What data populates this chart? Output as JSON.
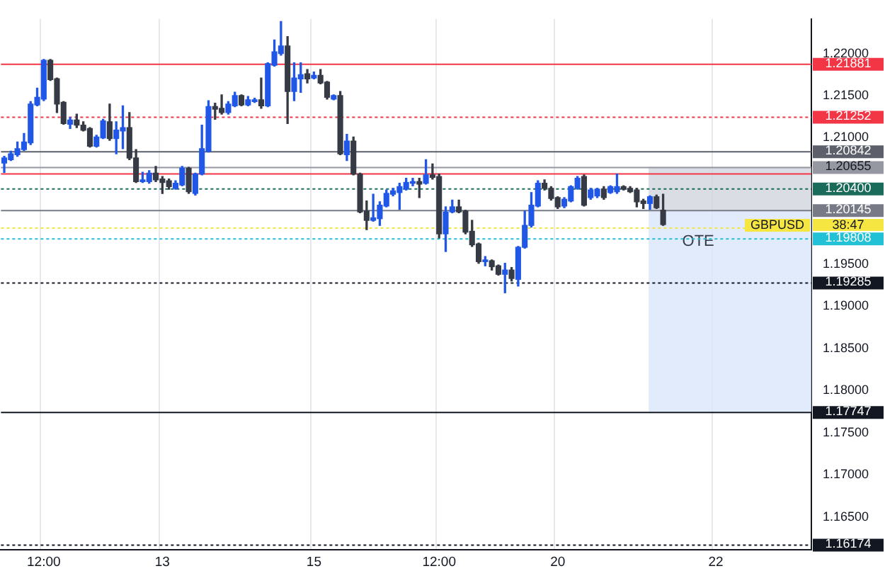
{
  "chart_data": {
    "type": "candlestick",
    "annotations": [
      {
        "text": "GBPUSD",
        "y": 1.19936
      },
      "38:47"
    ],
    "categories": [
      null,
      null,
      null,
      null,
      null,
      null,
      "12:00",
      null,
      null,
      null,
      null,
      null,
      null,
      null,
      null,
      null,
      null,
      null,
      null,
      null,
      null,
      null,
      null,
      null,
      "13",
      null,
      null,
      null,
      null,
      null,
      null,
      null,
      null,
      null,
      null,
      null,
      null,
      null,
      null,
      null,
      null,
      null,
      null,
      null,
      null,
      null,
      null,
      "15",
      null,
      null,
      null,
      null,
      null,
      null,
      null,
      null,
      null,
      null,
      null,
      null,
      null,
      null,
      null,
      null,
      null,
      null,
      "12:00",
      null,
      null,
      null,
      null,
      null,
      null,
      null,
      null,
      null,
      null,
      null,
      null,
      null,
      null,
      null,
      null,
      null,
      "20",
      null,
      null,
      null,
      null,
      null,
      null,
      null,
      null,
      null,
      null,
      null,
      null,
      null,
      null,
      null,
      null,
      null,
      null,
      null,
      null,
      null,
      null,
      null,
      "22",
      null,
      null,
      null,
      null,
      null,
      null,
      null,
      null,
      null,
      null,
      null,
      null,
      null,
      null
    ],
    "ohlc": [
      [
        1.207,
        1.2078,
        1.2059,
        1.2076
      ],
      [
        1.2074,
        1.2084,
        1.2073,
        1.2081
      ],
      [
        1.208,
        1.2095,
        1.2078,
        1.2087
      ],
      [
        1.2086,
        1.2105,
        1.2085,
        1.2095
      ],
      [
        1.2094,
        1.2143,
        1.2092,
        1.214
      ],
      [
        1.2139,
        1.2159,
        1.2138,
        1.2148
      ],
      [
        1.2146,
        1.2193,
        1.2144,
        1.2192
      ],
      [
        1.2192,
        1.2193,
        1.2168,
        1.2169
      ],
      [
        1.217,
        1.2171,
        1.213,
        1.214
      ],
      [
        1.2142,
        1.2143,
        1.2116,
        1.2117
      ],
      [
        1.2116,
        1.2124,
        1.2111,
        1.2121
      ],
      [
        1.2121,
        1.2128,
        1.2112,
        1.2115
      ],
      [
        1.2115,
        1.2119,
        1.2108,
        1.2109
      ],
      [
        1.2111,
        1.2112,
        1.2089,
        1.209
      ],
      [
        1.209,
        1.2103,
        1.2089,
        1.2101
      ],
      [
        1.21,
        1.2122,
        1.2099,
        1.212
      ],
      [
        1.2119,
        1.214,
        1.2097,
        1.2099
      ],
      [
        1.2099,
        1.2119,
        1.2081,
        1.2109
      ],
      [
        1.2108,
        1.2138,
        1.2087,
        1.2112
      ],
      [
        1.2112,
        1.213,
        1.2074,
        1.2076
      ],
      [
        1.2076,
        1.2086,
        1.2047,
        1.2048
      ],
      [
        1.2048,
        1.2059,
        1.2047,
        1.205
      ],
      [
        1.2048,
        1.2061,
        1.2046,
        1.2058
      ],
      [
        1.2058,
        1.2066,
        1.2048,
        1.205
      ],
      [
        1.2051,
        1.2054,
        1.2034,
        1.2047
      ],
      [
        1.2049,
        1.2051,
        1.2039,
        1.2042
      ],
      [
        1.204,
        1.2049,
        1.2039,
        1.2046
      ],
      [
        1.2044,
        1.2066,
        1.2043,
        1.2064
      ],
      [
        1.2064,
        1.2065,
        1.2034,
        1.2036
      ],
      [
        1.2034,
        1.2058,
        1.2032,
        1.2057
      ],
      [
        1.2057,
        1.2115,
        1.2056,
        1.2087
      ],
      [
        1.2084,
        1.2144,
        1.2083,
        1.2137
      ],
      [
        1.2137,
        1.2141,
        1.2122,
        1.2134
      ],
      [
        1.2135,
        1.2151,
        1.2128,
        1.213
      ],
      [
        1.213,
        1.2143,
        1.2128,
        1.214
      ],
      [
        1.2138,
        1.2154,
        1.2137,
        1.215
      ],
      [
        1.215,
        1.2151,
        1.2138,
        1.2139
      ],
      [
        1.2139,
        1.2149,
        1.2138,
        1.2145
      ],
      [
        1.2143,
        1.2147,
        1.2142,
        1.2145
      ],
      [
        1.2145,
        1.2171,
        1.2135,
        1.2138
      ],
      [
        1.2138,
        1.2189,
        1.2137,
        1.2188
      ],
      [
        1.2186,
        1.2216,
        1.2185,
        1.2202
      ],
      [
        1.22,
        1.2238,
        1.2198,
        1.2209
      ],
      [
        1.2209,
        1.222,
        1.2117,
        1.2155
      ],
      [
        1.2155,
        1.2189,
        1.2144,
        1.2171
      ],
      [
        1.217,
        1.2189,
        1.2154,
        1.2175
      ],
      [
        1.2176,
        1.2181,
        1.2165,
        1.217
      ],
      [
        1.2171,
        1.2178,
        1.217,
        1.2174
      ],
      [
        1.2174,
        1.2181,
        1.2164,
        1.2165
      ],
      [
        1.2166,
        1.2167,
        1.2146,
        1.2148
      ],
      [
        1.2146,
        1.2151,
        1.2145,
        1.215
      ],
      [
        1.215,
        1.2155,
        1.208,
        1.2081
      ],
      [
        1.208,
        1.2104,
        1.2073,
        1.2096
      ],
      [
        1.2096,
        1.2101,
        1.2056,
        1.2057
      ],
      [
        1.2057,
        1.2058,
        1.2011,
        1.2012
      ],
      [
        1.2013,
        1.2025,
        1.1991,
        1.2002
      ],
      [
        1.2002,
        1.2033,
        1.2001,
        1.2005
      ],
      [
        1.2004,
        1.2024,
        1.1996,
        1.202
      ],
      [
        1.2019,
        1.2038,
        1.2018,
        1.2034
      ],
      [
        1.2033,
        1.204,
        1.2031,
        1.2037
      ],
      [
        1.2035,
        1.2046,
        1.2015,
        1.2042
      ],
      [
        1.2039,
        1.2052,
        1.2038,
        1.2047
      ],
      [
        1.2046,
        1.2052,
        1.2043,
        1.2048
      ],
      [
        1.2048,
        1.2052,
        1.2029,
        1.2045
      ],
      [
        1.2046,
        1.2074,
        1.2045,
        1.2056
      ],
      [
        1.2056,
        1.2069,
        1.2051,
        1.2053
      ],
      [
        1.2054,
        1.2057,
        1.1981,
        1.1986
      ],
      [
        1.1986,
        1.2018,
        1.1965,
        1.2012
      ],
      [
        1.2012,
        1.2026,
        1.2011,
        1.2018
      ],
      [
        1.2018,
        1.2026,
        1.2011,
        1.2012
      ],
      [
        1.2013,
        1.2014,
        1.1986,
        1.1988
      ],
      [
        1.1989,
        1.2002,
        1.1971,
        1.1973
      ],
      [
        1.1974,
        1.1975,
        1.1951,
        1.1953
      ],
      [
        1.1953,
        1.1959,
        1.1948,
        1.1955
      ],
      [
        1.1954,
        1.1955,
        1.1943,
        1.1947
      ],
      [
        1.1948,
        1.1949,
        1.1937,
        1.1938
      ],
      [
        1.1938,
        1.1951,
        1.1916,
        1.1943
      ],
      [
        1.1943,
        1.1946,
        1.193,
        1.1933
      ],
      [
        1.1932,
        1.1971,
        1.1924,
        1.197
      ],
      [
        1.197,
        1.2013,
        1.1969,
        1.1996
      ],
      [
        1.1996,
        1.2035,
        1.1994,
        1.202
      ],
      [
        1.2019,
        1.2049,
        1.2018,
        1.2046
      ],
      [
        1.2046,
        1.205,
        1.2038,
        1.204
      ],
      [
        1.204,
        1.2042,
        1.2026,
        1.2028
      ],
      [
        1.2029,
        1.203,
        1.2016,
        1.2018
      ],
      [
        1.2019,
        1.2029,
        1.2017,
        1.2027
      ],
      [
        1.2025,
        1.2043,
        1.2024,
        1.2042
      ],
      [
        1.204,
        1.2054,
        1.2039,
        1.2052
      ],
      [
        1.2054,
        1.2056,
        1.2019,
        1.202
      ],
      [
        1.2029,
        1.204,
        1.2027,
        1.2038
      ],
      [
        1.2031,
        1.204,
        1.2029,
        1.2039
      ],
      [
        1.2039,
        1.2042,
        1.2027,
        1.2029
      ],
      [
        1.2035,
        1.2043,
        1.2034,
        1.2042
      ],
      [
        1.2036,
        1.2057,
        1.2034,
        1.2042
      ],
      [
        1.2042,
        1.2043,
        1.2038,
        1.2039
      ],
      [
        1.204,
        1.2042,
        1.2035,
        1.2036
      ],
      [
        1.2038,
        1.204,
        1.2018,
        1.2024
      ],
      [
        1.2025,
        1.2027,
        1.2016,
        1.2022
      ],
      [
        1.2022,
        1.2031,
        1.2015,
        1.203
      ],
      [
        1.203,
        1.2032,
        1.2016,
        1.2017
      ],
      [
        1.2014,
        1.2033,
        1.1996,
        1.1997
      ],
      null,
      null,
      null,
      null,
      null,
      null,
      null,
      null,
      null,
      null,
      null,
      null,
      null,
      null,
      null,
      null,
      null,
      null,
      null,
      null,
      null,
      null
    ],
    "ylim": [
      1.1611,
      1.2241
    ],
    "yticks": [
      {
        "value": 1.165,
        "label": "1.16500"
      },
      {
        "value": 1.17,
        "label": "1.17000"
      },
      {
        "value": 1.175,
        "label": "1.17500"
      },
      {
        "value": 1.18,
        "label": "1.18000"
      },
      {
        "value": 1.185,
        "label": "1.18500"
      },
      {
        "value": 1.19,
        "label": "1.19000"
      },
      {
        "value": 1.195,
        "label": "1.19500"
      },
      {
        "value": 1.21,
        "label": "1.21000"
      },
      {
        "value": 1.215,
        "label": "1.21500"
      },
      {
        "value": 1.22,
        "label": "1.22000"
      }
    ],
    "grid": "x",
    "legend": false,
    "bands": [
      {
        "axis": "y",
        "from": 1.20145,
        "to": 1.20655,
        "color": "#d1d4dc"
      },
      {
        "axis": "y",
        "from": 1.17747,
        "to": 1.20145,
        "label": "OTE",
        "color": "#dbe6fb"
      }
    ],
    "ref_lines": [
      {
        "axis": "y",
        "value": 1.21881,
        "label": "1.21881",
        "color": "#f23645"
      },
      {
        "axis": "y",
        "value": 1.21252,
        "label": "1.21252",
        "color": "#f23645",
        "line_style": "dotted"
      },
      {
        "axis": "y",
        "value": 1.20842,
        "label": "1.20842",
        "color": "#5d606b"
      },
      {
        "axis": "y",
        "value": 1.2058,
        "color": "#f23645"
      },
      {
        "axis": "y",
        "value": 1.20655,
        "label": "1.20655",
        "color": "#9598a1"
      },
      {
        "axis": "y",
        "value": 1.204,
        "label": "1.20400",
        "color": "#1b6b5a",
        "line_style": "dotted"
      },
      {
        "axis": "y",
        "value": 1.20145,
        "label": "1.20145",
        "color": "#787b86"
      },
      {
        "axis": "y",
        "value": 1.19936,
        "color": "#f5e642",
        "line_style": "dotted"
      },
      {
        "axis": "y",
        "value": 1.19808,
        "label": "1.19808",
        "color": "#22c1d6",
        "line_style": "dotted"
      },
      {
        "axis": "y",
        "value": 1.19285,
        "label": "1.19285",
        "color": "#131722",
        "line_style": "dotted"
      },
      {
        "axis": "y",
        "value": 1.17747,
        "label": "1.17747",
        "color": "#131722"
      },
      {
        "axis": "y",
        "value": 1.16174,
        "label": "1.16174",
        "color": "#131722",
        "line_style": "dotted"
      }
    ]
  }
}
